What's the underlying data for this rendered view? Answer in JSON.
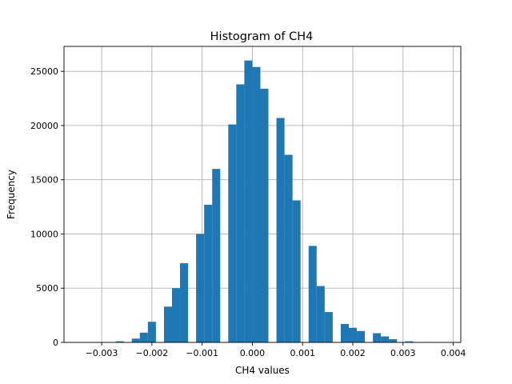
{
  "chart_data": {
    "type": "bar",
    "title": "Histogram of CH4",
    "xlabel": "CH4 values",
    "ylabel": "Frequency",
    "xlim": [
      -0.00375,
      0.00415
    ],
    "ylim": [
      0,
      27300
    ],
    "xticks": [
      -0.003,
      -0.002,
      -0.001,
      0.0,
      0.001,
      0.002,
      0.003,
      0.004
    ],
    "xtick_labels": [
      "−0.003",
      "−0.002",
      "−0.001",
      "0.000",
      "0.001",
      "0.002",
      "0.003",
      "0.004"
    ],
    "yticks": [
      0,
      5000,
      10000,
      15000,
      20000,
      25000
    ],
    "ytick_labels": [
      "0",
      "5000",
      "10000",
      "15000",
      "20000",
      "25000"
    ],
    "grid": true,
    "bar_color": "#1f77b4",
    "bins": [
      {
        "x0": -0.00368,
        "x1": -0.00352,
        "value": 0
      },
      {
        "x0": -0.00336,
        "x1": -0.0032,
        "value": 0
      },
      {
        "x0": -0.00304,
        "x1": -0.00288,
        "value": 30
      },
      {
        "x0": -0.00272,
        "x1": -0.00256,
        "value": 100
      },
      {
        "x0": -0.0024,
        "x1": -0.00224,
        "value": 350
      },
      {
        "x0": -0.00224,
        "x1": -0.00208,
        "value": 900
      },
      {
        "x0": -0.00208,
        "x1": -0.00192,
        "value": 1900
      },
      {
        "x0": -0.00176,
        "x1": -0.0016,
        "value": 3300
      },
      {
        "x0": -0.0016,
        "x1": -0.00144,
        "value": 5000
      },
      {
        "x0": -0.00144,
        "x1": -0.00128,
        "value": 7300
      },
      {
        "x0": -0.00112,
        "x1": -0.00096,
        "value": 10000
      },
      {
        "x0": -0.00096,
        "x1": -0.0008,
        "value": 12700
      },
      {
        "x0": -0.0008,
        "x1": -0.00064,
        "value": 16000
      },
      {
        "x0": -0.00048,
        "x1": -0.00032,
        "value": 20100
      },
      {
        "x0": -0.00032,
        "x1": -0.00016,
        "value": 23800
      },
      {
        "x0": -0.00016,
        "x1": 0.0,
        "value": 26000
      },
      {
        "x0": 0.0,
        "x1": 0.00016,
        "value": 25400
      },
      {
        "x0": 0.00016,
        "x1": 0.00032,
        "value": 23400
      },
      {
        "x0": 0.00048,
        "x1": 0.00064,
        "value": 20700
      },
      {
        "x0": 0.00064,
        "x1": 0.0008,
        "value": 17300
      },
      {
        "x0": 0.0008,
        "x1": 0.00096,
        "value": 13100
      },
      {
        "x0": 0.00112,
        "x1": 0.00128,
        "value": 8900
      },
      {
        "x0": 0.00128,
        "x1": 0.00144,
        "value": 5200
      },
      {
        "x0": 0.00144,
        "x1": 0.0016,
        "value": 2800
      },
      {
        "x0": 0.00176,
        "x1": 0.00192,
        "value": 1700
      },
      {
        "x0": 0.00192,
        "x1": 0.00208,
        "value": 1350
      },
      {
        "x0": 0.00208,
        "x1": 0.00224,
        "value": 1050
      },
      {
        "x0": 0.0024,
        "x1": 0.00256,
        "value": 850
      },
      {
        "x0": 0.00256,
        "x1": 0.00272,
        "value": 550
      },
      {
        "x0": 0.00272,
        "x1": 0.00288,
        "value": 300
      },
      {
        "x0": 0.00304,
        "x1": 0.0032,
        "value": 100
      },
      {
        "x0": 0.00336,
        "x1": 0.00352,
        "value": 20
      }
    ]
  }
}
